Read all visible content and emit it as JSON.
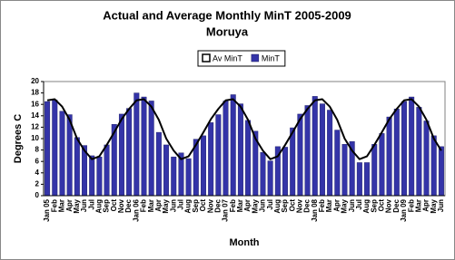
{
  "chart_data": {
    "type": "bar",
    "title": "Actual and Average Monthly MinT 2005-2009",
    "subtitle": "Moruya",
    "x_label": "Month",
    "y_label": "Degrees C",
    "categories": [
      "Jan 05",
      "Feb",
      "Mar",
      "Apr",
      "May",
      "Jun",
      "Jul",
      "Aug",
      "Sep",
      "Oct",
      "Nov",
      "Dec",
      "Jan 06",
      "Feb",
      "Mar",
      "Apr",
      "May",
      "Jun",
      "Jul",
      "Aug",
      "Sep",
      "Oct",
      "Nov",
      "Dec",
      "Jan 07",
      "Feb",
      "Mar",
      "Apr",
      "May",
      "Jun",
      "Jul",
      "Aug",
      "Sep",
      "Oct",
      "Nov",
      "Dec",
      "Jan 08",
      "Feb",
      "Mar",
      "Apr",
      "May",
      "Jun",
      "Jul",
      "Aug",
      "Sep",
      "Oct",
      "Nov",
      "Dec",
      "Jan 09",
      "Feb",
      "Mar",
      "Apr",
      "May",
      "Jun"
    ],
    "series": [
      {
        "name": "Av MinT",
        "type": "line",
        "color": "#000000",
        "values": [
          16.7,
          16.9,
          15.6,
          13.3,
          10.0,
          7.9,
          6.4,
          6.9,
          8.9,
          11.1,
          13.4,
          15.2,
          16.7,
          16.9,
          15.6,
          13.3,
          10.0,
          7.9,
          6.4,
          6.9,
          8.9,
          11.1,
          13.4,
          15.2,
          16.7,
          16.9,
          15.6,
          13.3,
          10.0,
          7.9,
          6.4,
          6.9,
          8.9,
          11.1,
          13.4,
          15.2,
          16.7,
          16.9,
          15.6,
          13.3,
          10.0,
          7.9,
          6.4,
          6.9,
          8.9,
          11.1,
          13.4,
          15.2,
          16.7,
          16.9,
          15.6,
          13.3,
          10.0,
          7.9
        ]
      },
      {
        "name": "MinT",
        "type": "bar",
        "color": "#3434a8",
        "values": [
          16.5,
          16.8,
          14.8,
          14.2,
          10.2,
          8.8,
          7.0,
          6.8,
          8.9,
          12.5,
          14.3,
          15.3,
          18.0,
          17.3,
          16.6,
          11.1,
          8.9,
          6.8,
          7.5,
          6.5,
          9.9,
          10.5,
          12.8,
          14.2,
          16.6,
          17.7,
          16.1,
          13.2,
          11.3,
          7.6,
          6.1,
          8.6,
          8.5,
          11.9,
          14.3,
          15.8,
          17.4,
          16.1,
          15.0,
          11.5,
          9.0,
          9.5,
          5.8,
          5.8,
          9.0,
          10.9,
          13.8,
          15.2,
          16.5,
          17.3,
          15.5,
          13.1,
          10.5,
          8.6
        ]
      }
    ],
    "ylim": [
      0,
      20
    ],
    "yticks": [
      0,
      2,
      4,
      6,
      8,
      10,
      12,
      14,
      16,
      18,
      20
    ],
    "grid": false,
    "legend": "top"
  }
}
